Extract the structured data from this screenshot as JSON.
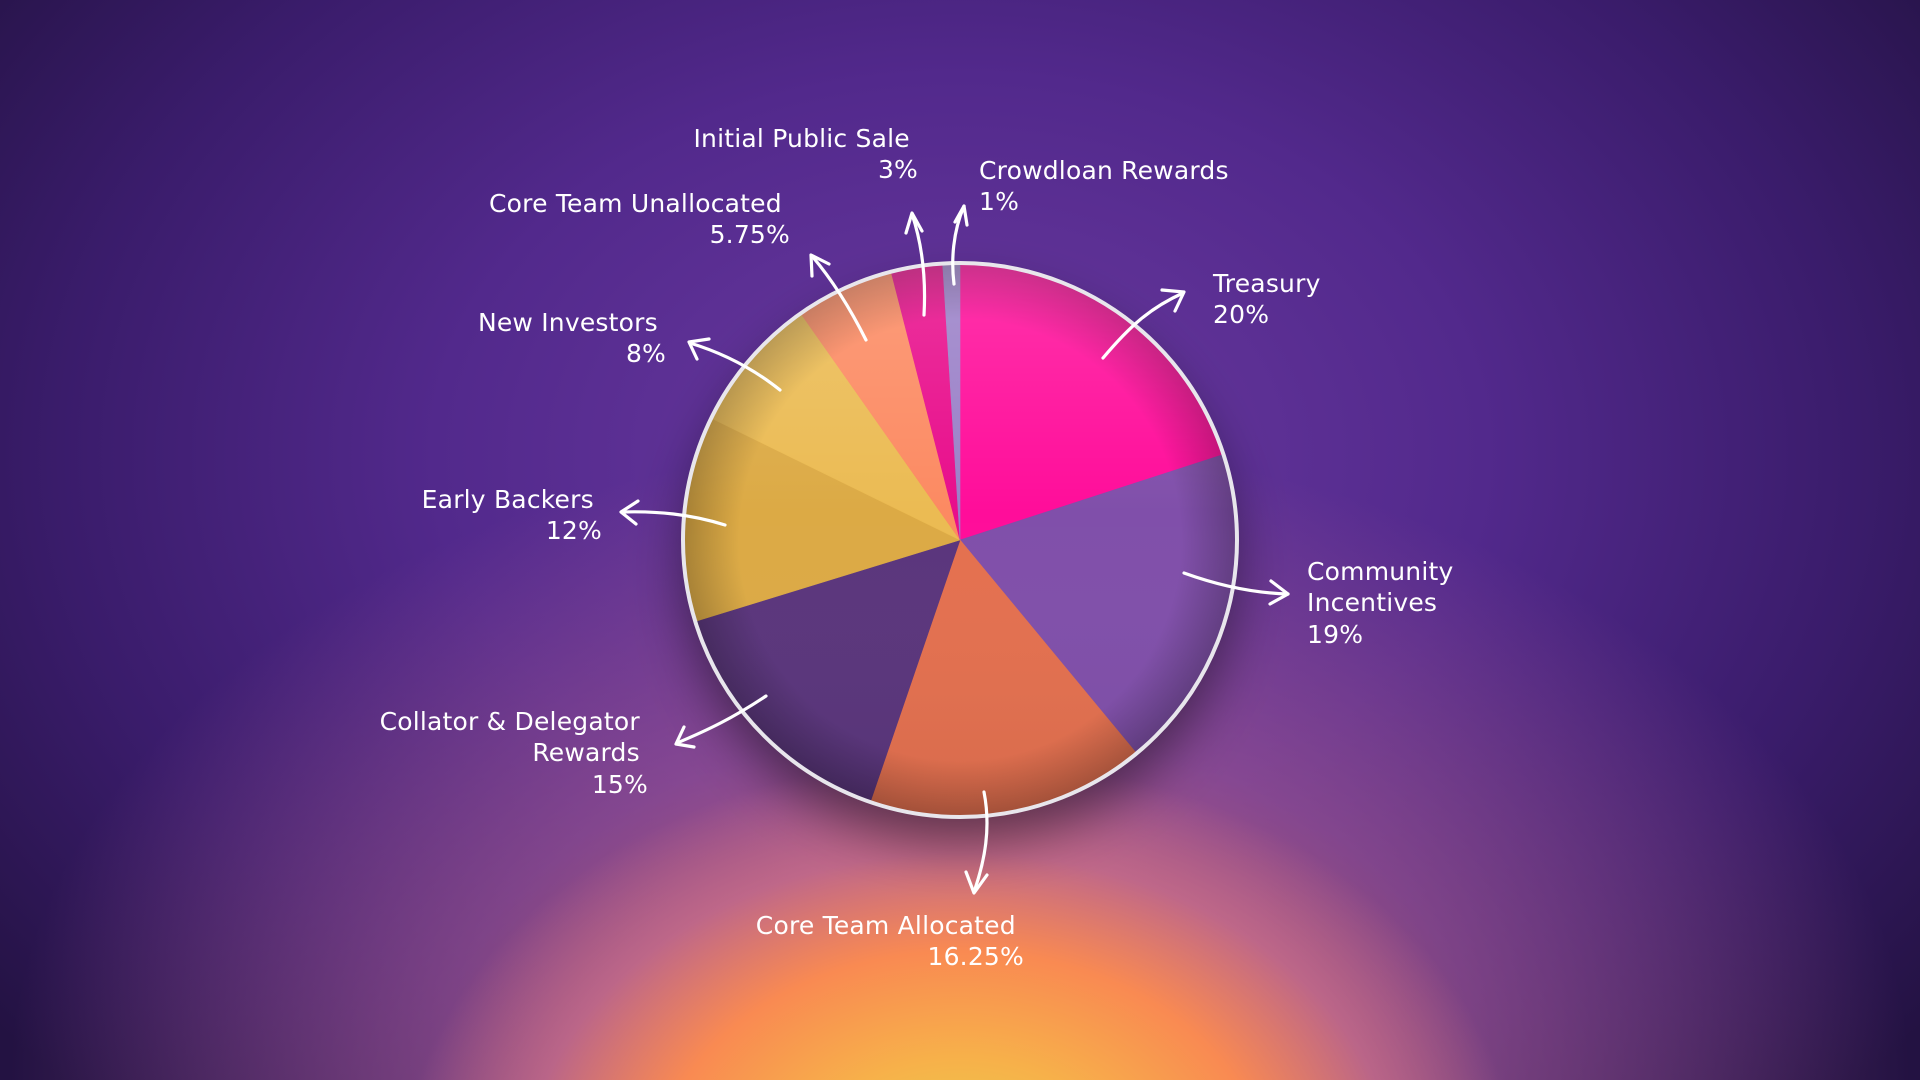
{
  "chart_data": {
    "type": "pie",
    "title": "",
    "start_angle_deg": 0,
    "direction": "clockwise",
    "slices": [
      {
        "label_lines": [
          "Treasury"
        ],
        "value_text": "20%",
        "value": 20,
        "color": "#ff0a9a"
      },
      {
        "label_lines": [
          "Community",
          "Incentives"
        ],
        "value_text": "19%",
        "value": 19,
        "color": "#8050aa"
      },
      {
        "label_lines": [
          "Core Team Allocated"
        ],
        "value_text": "16.25%",
        "value": 16.25,
        "color": "#e4704f"
      },
      {
        "label_lines": [
          "Collator & Delegator",
          "Rewards"
        ],
        "value_text": "15%",
        "value": 15,
        "color": "#5a367c"
      },
      {
        "label_lines": [
          "Early Backers"
        ],
        "value_text": "12%",
        "value": 12,
        "color": "#dcaa45"
      },
      {
        "label_lines": [
          "New Investors"
        ],
        "value_text": "8%",
        "value": 8,
        "color": "#ebbb52"
      },
      {
        "label_lines": [
          "Core Team Unallocated"
        ],
        "value_text": "5.75%",
        "value": 5.75,
        "color": "#fc8a62"
      },
      {
        "label_lines": [
          "Initial Public Sale"
        ],
        "value_text": "3%",
        "value": 3,
        "color": "#e80d8b"
      },
      {
        "label_lines": [
          "Crowdloan Rewards"
        ],
        "value_text": "1%",
        "value": 1,
        "color": "#9a80c8"
      }
    ]
  }
}
